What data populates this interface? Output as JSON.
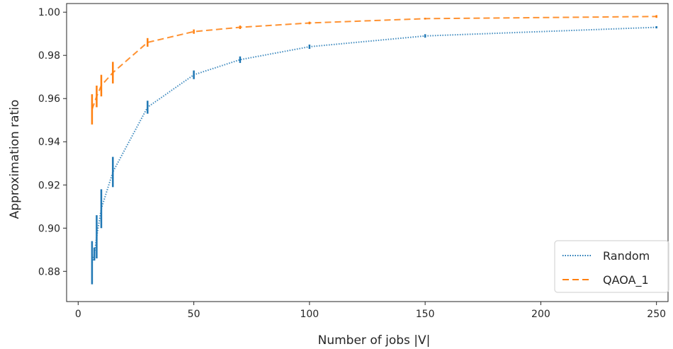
{
  "chart_data": {
    "type": "line",
    "xlabel": "Number of jobs |V|",
    "ylabel": "Approximation ratio",
    "xlim": [
      -5,
      255
    ],
    "ylim": [
      0.866,
      1.004
    ],
    "xticks": [
      0,
      50,
      100,
      150,
      200,
      250
    ],
    "yticks": [
      0.88,
      0.9,
      0.92,
      0.94,
      0.96,
      0.98,
      1.0
    ],
    "ytick_labels": [
      "0.88",
      "0.90",
      "0.92",
      "0.94",
      "0.96",
      "0.98",
      "1.00"
    ],
    "grid": false,
    "legend_position": "bottom-right",
    "series": [
      {
        "name": "Random",
        "color": "#1f77b4",
        "linestyle": "dotted",
        "x": [
          6,
          7,
          8,
          10,
          15,
          30,
          50,
          70,
          100,
          150,
          250
        ],
        "y": [
          0.884,
          0.888,
          0.896,
          0.909,
          0.926,
          0.956,
          0.971,
          0.978,
          0.984,
          0.989,
          0.993
        ],
        "err": [
          0.01,
          0.003,
          0.01,
          0.009,
          0.007,
          0.003,
          0.002,
          0.0015,
          0.001,
          0.0008,
          0.0005
        ]
      },
      {
        "name": "QAOA_1",
        "color": "#ff7f0e",
        "linestyle": "dashed",
        "x": [
          6,
          8,
          10,
          15,
          30,
          50,
          70,
          100,
          150,
          250
        ],
        "y": [
          0.955,
          0.961,
          0.966,
          0.972,
          0.986,
          0.991,
          0.993,
          0.995,
          0.997,
          0.998
        ],
        "err": [
          0.007,
          0.005,
          0.005,
          0.005,
          0.002,
          0.001,
          0.0008,
          0.0006,
          0.0004,
          0.0003
        ]
      }
    ]
  }
}
